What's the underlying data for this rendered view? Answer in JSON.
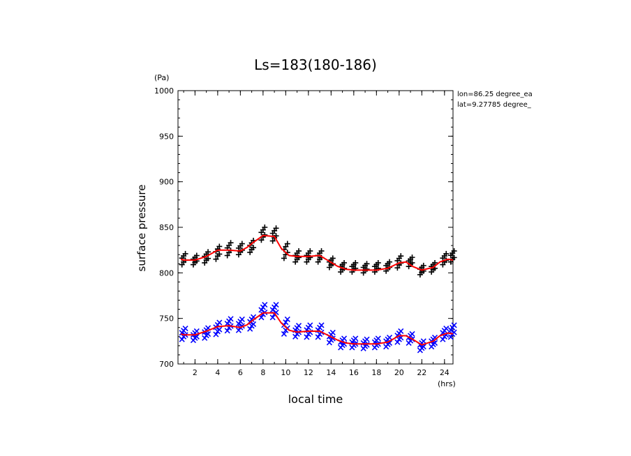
{
  "chart_data": {
    "type": "scatter",
    "title": "Ls=183(180-186)",
    "xlabel": "local time",
    "ylabel": "surface pressure",
    "x_unit": "(hrs)",
    "y_unit": "(Pa)",
    "xlim": [
      0.5,
      24.75
    ],
    "ylim": [
      700,
      1000
    ],
    "x_ticks": [
      2,
      4,
      6,
      8,
      10,
      12,
      14,
      16,
      18,
      20,
      22,
      24
    ],
    "y_ticks": [
      700,
      750,
      800,
      850,
      900,
      950,
      1000
    ],
    "info": [
      "lon=86.25 degree_ea",
      "lat=9.27785 degree_"
    ],
    "colors": {
      "plus": "#000000",
      "cross": "#0000ff",
      "line": "#ff0000"
    },
    "x": [
      1,
      2,
      3,
      4,
      5,
      6,
      7,
      8,
      9,
      10,
      11,
      12,
      13,
      14,
      15,
      16,
      17,
      18,
      19,
      20,
      21,
      22,
      23,
      24,
      25
    ],
    "series": [
      {
        "marker": "plus",
        "color": "#000000",
        "center": [
          815,
          814,
          817,
          822,
          826,
          826,
          829,
          843,
          842,
          824,
          818,
          818,
          818,
          811,
          806,
          806,
          805,
          806,
          807,
          812,
          812,
          803,
          806,
          815,
          818
        ],
        "spread": [
          12,
          10,
          12,
          14,
          14,
          12,
          13,
          14,
          14,
          16,
          12,
          12,
          12,
          10,
          10,
          10,
          10,
          10,
          10,
          13,
          10,
          10,
          10,
          12,
          12
        ]
      },
      {
        "marker": "cross",
        "color": "#0000ff",
        "center": [
          733,
          731,
          734,
          739,
          743,
          743,
          745,
          758,
          758,
          741,
          736,
          736,
          736,
          729,
          723,
          723,
          722,
          723,
          724,
          730,
          728,
          720,
          724,
          733,
          736
        ],
        "spread": [
          12,
          10,
          11,
          13,
          13,
          12,
          13,
          14,
          14,
          16,
          12,
          13,
          13,
          11,
          10,
          10,
          10,
          10,
          10,
          12,
          10,
          10,
          10,
          12,
          13
        ]
      }
    ],
    "lines": [
      {
        "color": "#ff0000",
        "x": [
          0.75,
          1,
          2,
          3,
          4,
          5,
          6,
          6.6,
          7.2,
          8,
          9,
          9.6,
          10.3,
          11,
          12,
          13,
          13.8,
          14.6,
          15.3,
          16,
          17,
          18,
          19,
          20,
          20.6,
          21.2,
          22,
          23,
          23.6,
          24.3,
          24.75
        ],
        "y": [
          815,
          814,
          814,
          818,
          825,
          825,
          824,
          828,
          834,
          841,
          840,
          827,
          819,
          818,
          818,
          819,
          813,
          807,
          804,
          803,
          803,
          803,
          805,
          811,
          812,
          807,
          803,
          806,
          812,
          815,
          814
        ]
      },
      {
        "color": "#ff0000",
        "x": [
          0.75,
          1,
          2,
          3,
          4,
          5,
          6,
          6.6,
          7.2,
          8,
          9,
          9.6,
          10.3,
          11,
          12,
          13,
          13.8,
          14.6,
          15.3,
          16,
          17,
          18,
          19,
          20,
          20.6,
          21.2,
          22,
          23,
          23.6,
          24.3,
          24.75
        ],
        "y": [
          733,
          732,
          732,
          736,
          741,
          742,
          740,
          743,
          749,
          756,
          756,
          745,
          737,
          735,
          736,
          736,
          731,
          726,
          723,
          722,
          722,
          722,
          724,
          731,
          731,
          727,
          721,
          725,
          731,
          734,
          733
        ]
      }
    ]
  }
}
